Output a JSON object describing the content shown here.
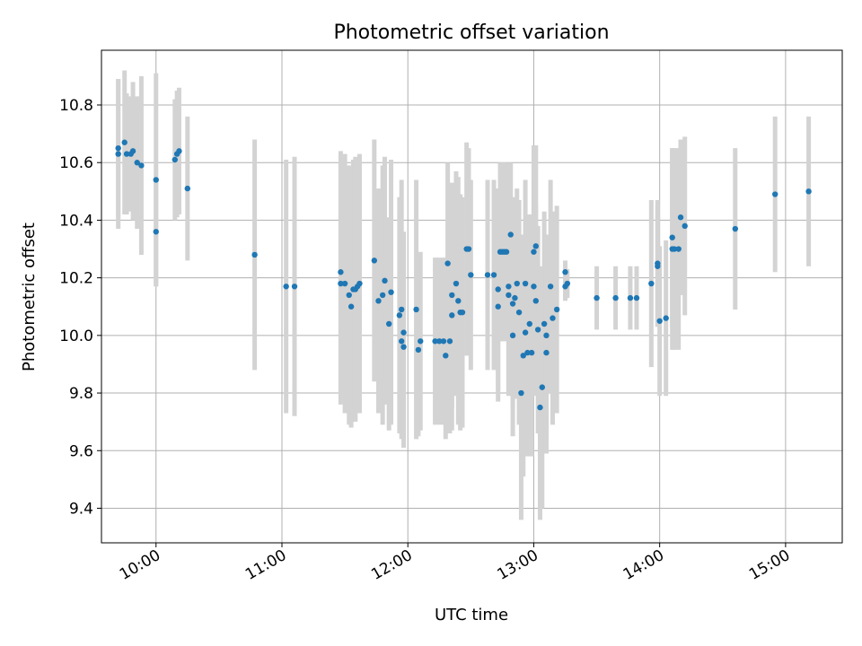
{
  "chart_data": {
    "type": "scatter",
    "title": "Photometric offset variation",
    "xlabel": "UTC time",
    "ylabel": "Photometric offset",
    "x_tick_labels": [
      "10:00",
      "11:00",
      "12:00",
      "13:00",
      "14:00",
      "15:00"
    ],
    "x_tick_times": [
      "10:00",
      "11:00",
      "12:00",
      "13:00",
      "14:00",
      "15:00"
    ],
    "y_ticks": [
      9.4,
      9.6,
      9.8,
      10.0,
      10.2,
      10.4,
      10.6,
      10.8
    ],
    "xlim": [
      "09:34",
      "15:27"
    ],
    "ylim": [
      9.28,
      10.99
    ],
    "grid": true,
    "colors": {
      "marker": "#1f77b4",
      "errorbar": "#d3d3d3",
      "grid": "#b0b0b0"
    },
    "points": [
      {
        "t": "09:42",
        "y": 10.63,
        "err": 0.26
      },
      {
        "t": "09:42",
        "y": 10.65,
        "err": 0.24
      },
      {
        "t": "09:45",
        "y": 10.67,
        "err": 0.25
      },
      {
        "t": "09:46",
        "y": 10.63,
        "err": 0.21
      },
      {
        "t": "09:48",
        "y": 10.63,
        "err": 0.2
      },
      {
        "t": "09:49",
        "y": 10.64,
        "err": 0.24
      },
      {
        "t": "09:51",
        "y": 10.6,
        "err": 0.23
      },
      {
        "t": "09:53",
        "y": 10.59,
        "err": 0.31
      },
      {
        "t": "10:00",
        "y": 10.54,
        "err": 0.37
      },
      {
        "t": "10:00",
        "y": 10.36,
        "err": 0.19
      },
      {
        "t": "10:09",
        "y": 10.61,
        "err": 0.21
      },
      {
        "t": "10:10",
        "y": 10.63,
        "err": 0.22
      },
      {
        "t": "10:11",
        "y": 10.64,
        "err": 0.22
      },
      {
        "t": "10:15",
        "y": 10.51,
        "err": 0.25
      },
      {
        "t": "10:47",
        "y": 10.28,
        "err": 0.4
      },
      {
        "t": "11:02",
        "y": 10.17,
        "err": 0.44
      },
      {
        "t": "11:06",
        "y": 10.17,
        "err": 0.45
      },
      {
        "t": "11:28",
        "y": 10.22,
        "err": 0.42
      },
      {
        "t": "11:28",
        "y": 10.18,
        "err": 0.42
      },
      {
        "t": "11:30",
        "y": 10.18,
        "err": 0.45
      },
      {
        "t": "11:32",
        "y": 10.14,
        "err": 0.45
      },
      {
        "t": "11:33",
        "y": 10.1,
        "err": 0.42
      },
      {
        "t": "11:34",
        "y": 10.16,
        "err": 0.45
      },
      {
        "t": "11:35",
        "y": 10.16,
        "err": 0.46
      },
      {
        "t": "11:36",
        "y": 10.17,
        "err": 0.44
      },
      {
        "t": "11:37",
        "y": 10.18,
        "err": 0.45
      },
      {
        "t": "11:44",
        "y": 10.26,
        "err": 0.42
      },
      {
        "t": "11:46",
        "y": 10.12,
        "err": 0.39
      },
      {
        "t": "11:48",
        "y": 10.14,
        "err": 0.45
      },
      {
        "t": "11:49",
        "y": 10.19,
        "err": 0.43
      },
      {
        "t": "11:51",
        "y": 10.04,
        "err": 0.37
      },
      {
        "t": "11:52",
        "y": 10.15,
        "err": 0.46
      },
      {
        "t": "11:56",
        "y": 10.07,
        "err": 0.41
      },
      {
        "t": "11:57",
        "y": 10.09,
        "err": 0.45
      },
      {
        "t": "11:57",
        "y": 9.98,
        "err": 0.32
      },
      {
        "t": "11:58",
        "y": 10.01,
        "err": 0.35
      },
      {
        "t": "11:58",
        "y": 9.96,
        "err": 0.35
      },
      {
        "t": "12:04",
        "y": 10.09,
        "err": 0.45
      },
      {
        "t": "12:05",
        "y": 9.95,
        "err": 0.3
      },
      {
        "t": "12:06",
        "y": 9.98,
        "err": 0.31
      },
      {
        "t": "12:13",
        "y": 9.98,
        "err": 0.29
      },
      {
        "t": "12:15",
        "y": 9.98,
        "err": 0.29
      },
      {
        "t": "12:17",
        "y": 9.98,
        "err": 0.29
      },
      {
        "t": "12:18",
        "y": 9.93,
        "err": 0.29
      },
      {
        "t": "12:19",
        "y": 10.25,
        "err": 0.35
      },
      {
        "t": "12:20",
        "y": 9.98,
        "err": 0.32
      },
      {
        "t": "12:21",
        "y": 10.14,
        "err": 0.39
      },
      {
        "t": "12:21",
        "y": 10.07,
        "err": 0.4
      },
      {
        "t": "12:23",
        "y": 10.18,
        "err": 0.39
      },
      {
        "t": "12:24",
        "y": 10.12,
        "err": 0.43
      },
      {
        "t": "12:25",
        "y": 10.08,
        "err": 0.41
      },
      {
        "t": "12:26",
        "y": 10.08,
        "err": 0.4
      },
      {
        "t": "12:28",
        "y": 10.3,
        "err": 0.37
      },
      {
        "t": "12:29",
        "y": 10.3,
        "err": 0.35
      },
      {
        "t": "12:30",
        "y": 10.21,
        "err": 0.33
      },
      {
        "t": "12:38",
        "y": 10.21,
        "err": 0.33
      },
      {
        "t": "12:41",
        "y": 10.21,
        "err": 0.33
      },
      {
        "t": "12:43",
        "y": 10.1,
        "err": 0.33
      },
      {
        "t": "12:43",
        "y": 10.16,
        "err": 0.35
      },
      {
        "t": "12:44",
        "y": 10.29,
        "err": 0.31
      },
      {
        "t": "12:45",
        "y": 10.29,
        "err": 0.31
      },
      {
        "t": "12:46",
        "y": 10.29,
        "err": 0.31
      },
      {
        "t": "12:47",
        "y": 10.29,
        "err": 0.31
      },
      {
        "t": "12:48",
        "y": 10.14,
        "err": 0.35
      },
      {
        "t": "12:48",
        "y": 10.17,
        "err": 0.36
      },
      {
        "t": "12:49",
        "y": 10.35,
        "err": 0.25
      },
      {
        "t": "12:50",
        "y": 10.0,
        "err": 0.35
      },
      {
        "t": "12:50",
        "y": 10.11,
        "err": 0.35
      },
      {
        "t": "12:51",
        "y": 10.13,
        "err": 0.35
      },
      {
        "t": "12:52",
        "y": 10.18,
        "err": 0.33
      },
      {
        "t": "12:53",
        "y": 10.08,
        "err": 0.39
      },
      {
        "t": "12:54",
        "y": 9.8,
        "err": 0.44
      },
      {
        "t": "12:55",
        "y": 9.93,
        "err": 0.42
      },
      {
        "t": "12:56",
        "y": 10.01,
        "err": 0.37
      },
      {
        "t": "12:56",
        "y": 10.18,
        "err": 0.36
      },
      {
        "t": "12:57",
        "y": 9.94,
        "err": 0.36
      },
      {
        "t": "12:58",
        "y": 10.04,
        "err": 0.38
      },
      {
        "t": "12:59",
        "y": 9.94,
        "err": 0.36
      },
      {
        "t": "13:00",
        "y": 10.17,
        "err": 0.37
      },
      {
        "t": "13:00",
        "y": 10.29,
        "err": 0.37
      },
      {
        "t": "13:01",
        "y": 10.31,
        "err": 0.35
      },
      {
        "t": "13:01",
        "y": 10.12,
        "err": 0.33
      },
      {
        "t": "13:02",
        "y": 10.02,
        "err": 0.36
      },
      {
        "t": "13:03",
        "y": 9.75,
        "err": 0.39
      },
      {
        "t": "13:04",
        "y": 9.82,
        "err": 0.42
      },
      {
        "t": "13:05",
        "y": 10.04,
        "err": 0.39
      },
      {
        "t": "13:06",
        "y": 9.94,
        "err": 0.35
      },
      {
        "t": "13:06",
        "y": 10.0,
        "err": 0.35
      },
      {
        "t": "13:08",
        "y": 10.17,
        "err": 0.37
      },
      {
        "t": "13:09",
        "y": 10.06,
        "err": 0.37
      },
      {
        "t": "13:11",
        "y": 10.09,
        "err": 0.36
      },
      {
        "t": "13:15",
        "y": 10.22,
        "err": 0.04
      },
      {
        "t": "13:15",
        "y": 10.17,
        "err": 0.05
      },
      {
        "t": "13:16",
        "y": 10.18,
        "err": 0.05
      },
      {
        "t": "13:30",
        "y": 10.13,
        "err": 0.11
      },
      {
        "t": "13:39",
        "y": 10.13,
        "err": 0.11
      },
      {
        "t": "13:46",
        "y": 10.13,
        "err": 0.11
      },
      {
        "t": "13:49",
        "y": 10.13,
        "err": 0.11
      },
      {
        "t": "13:56",
        "y": 10.18,
        "err": 0.29
      },
      {
        "t": "13:59",
        "y": 10.25,
        "err": 0.22
      },
      {
        "t": "13:59",
        "y": 10.24,
        "err": 0.21
      },
      {
        "t": "14:00",
        "y": 10.05,
        "err": 0.26
      },
      {
        "t": "14:03",
        "y": 10.06,
        "err": 0.27
      },
      {
        "t": "14:06",
        "y": 10.3,
        "err": 0.35
      },
      {
        "t": "14:06",
        "y": 10.34,
        "err": 0.31
      },
      {
        "t": "14:07",
        "y": 10.3,
        "err": 0.35
      },
      {
        "t": "14:09",
        "y": 10.3,
        "err": 0.35
      },
      {
        "t": "14:10",
        "y": 10.41,
        "err": 0.27
      },
      {
        "t": "14:12",
        "y": 10.38,
        "err": 0.31
      },
      {
        "t": "14:36",
        "y": 10.37,
        "err": 0.28
      },
      {
        "t": "14:55",
        "y": 10.49,
        "err": 0.27
      },
      {
        "t": "15:11",
        "y": 10.5,
        "err": 0.26
      }
    ]
  }
}
